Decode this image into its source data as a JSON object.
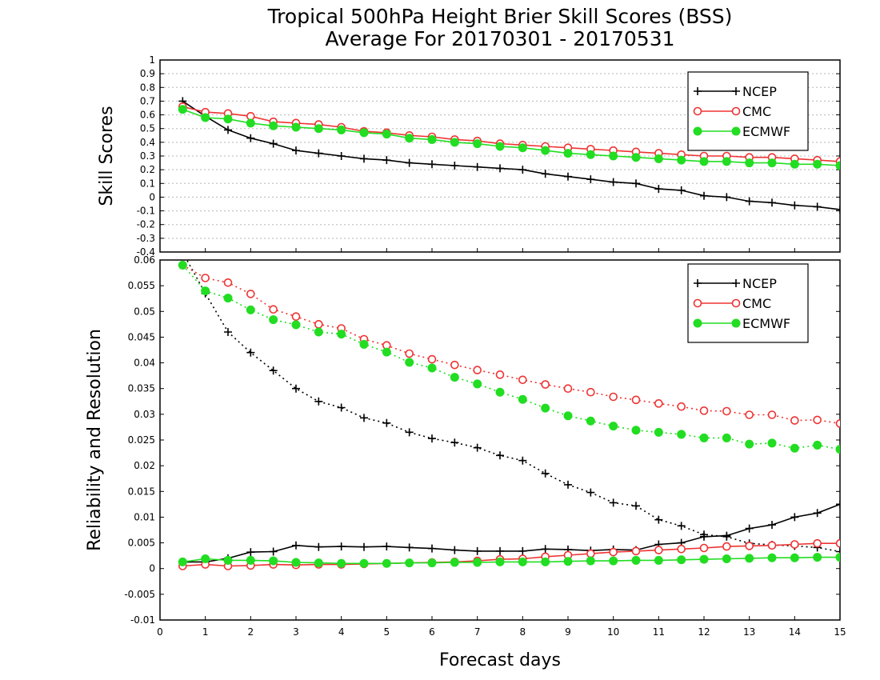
{
  "chart_data": [
    {
      "type": "line",
      "title": "Tropical 500hPa Height Brier Skill Scores (BSS)",
      "subtitle": "Average For 20170301 - 20170531",
      "ylabel": "Skill Scores",
      "xlabel": "",
      "xlim": [
        0,
        15
      ],
      "ylim": [
        -0.4,
        1
      ],
      "yticks": [
        "-0.4",
        "-0.3",
        "-0.2",
        "-0.1",
        "0",
        "0.1",
        "0.2",
        "0.3",
        "0.4",
        "0.5",
        "0.6",
        "0.7",
        "0.8",
        "0.9",
        "1"
      ],
      "grid": true,
      "legend_position": "top-right",
      "x": [
        0.5,
        1,
        1.5,
        2,
        2.5,
        3,
        3.5,
        4,
        4.5,
        5,
        5.5,
        6,
        6.5,
        7,
        7.5,
        8,
        8.5,
        9,
        9.5,
        10,
        10.5,
        11,
        11.5,
        12,
        12.5,
        13,
        13.5,
        14,
        14.5,
        15
      ],
      "series": [
        {
          "name": "NCEP",
          "color": "#000000",
          "marker": "plus",
          "style": "solid",
          "values": [
            0.7,
            0.59,
            0.49,
            0.43,
            0.39,
            0.34,
            0.32,
            0.3,
            0.28,
            0.27,
            0.25,
            0.24,
            0.23,
            0.22,
            0.21,
            0.2,
            0.17,
            0.15,
            0.13,
            0.11,
            0.1,
            0.06,
            0.05,
            0.01,
            0.0,
            -0.03,
            -0.04,
            -0.06,
            -0.07,
            -0.09
          ]
        },
        {
          "name": "CMC",
          "color": "#ee3333",
          "marker": "open-circle",
          "style": "solid",
          "values": [
            0.66,
            0.62,
            0.61,
            0.59,
            0.55,
            0.54,
            0.53,
            0.51,
            0.48,
            0.47,
            0.45,
            0.44,
            0.42,
            0.41,
            0.39,
            0.38,
            0.37,
            0.36,
            0.35,
            0.34,
            0.33,
            0.32,
            0.31,
            0.3,
            0.3,
            0.29,
            0.29,
            0.28,
            0.27,
            0.26
          ]
        },
        {
          "name": "ECMWF",
          "color": "#22dd22",
          "marker": "filled-circle",
          "style": "solid",
          "values": [
            0.64,
            0.58,
            0.57,
            0.54,
            0.52,
            0.51,
            0.5,
            0.49,
            0.47,
            0.46,
            0.43,
            0.42,
            0.4,
            0.39,
            0.37,
            0.36,
            0.34,
            0.32,
            0.31,
            0.3,
            0.29,
            0.28,
            0.27,
            0.26,
            0.26,
            0.25,
            0.25,
            0.24,
            0.24,
            0.23
          ]
        }
      ]
    },
    {
      "type": "line",
      "ylabel": "Reliability and Resolution",
      "xlabel": "Forecast days",
      "xlim": [
        0,
        15
      ],
      "ylim": [
        -0.01,
        0.06
      ],
      "xticks": [
        "0",
        "1",
        "2",
        "3",
        "4",
        "5",
        "6",
        "7",
        "8",
        "9",
        "10",
        "11",
        "12",
        "13",
        "14",
        "15"
      ],
      "yticks": [
        "-0.01",
        "-0.005",
        "0",
        "0.005",
        "0.01",
        "0.015",
        "0.02",
        "0.025",
        "0.03",
        "0.035",
        "0.04",
        "0.045",
        "0.05",
        "0.055",
        "0.06"
      ],
      "grid": false,
      "legend_position": "top-right",
      "legend": [
        {
          "name": "NCEP",
          "color": "#000000",
          "marker": "plus"
        },
        {
          "name": "CMC",
          "color": "#ee3333",
          "marker": "open-circle"
        },
        {
          "name": "ECMWF",
          "color": "#22dd22",
          "marker": "filled-circle"
        }
      ],
      "x": [
        0.5,
        1,
        1.5,
        2,
        2.5,
        3,
        3.5,
        4,
        4.5,
        5,
        5.5,
        6,
        6.5,
        7,
        7.5,
        8,
        8.5,
        9,
        9.5,
        10,
        10.5,
        11,
        11.5,
        12,
        12.5,
        13,
        13.5,
        14,
        14.5,
        15
      ],
      "series": [
        {
          "name": "NCEP",
          "group": "resolution",
          "color": "#000000",
          "marker": "plus",
          "style": "dotted",
          "values": [
            0.0615,
            0.0535,
            0.046,
            0.042,
            0.0385,
            0.035,
            0.0325,
            0.0313,
            0.0293,
            0.0283,
            0.0265,
            0.0253,
            0.0245,
            0.0235,
            0.022,
            0.021,
            0.0185,
            0.0163,
            0.0148,
            0.0128,
            0.0122,
            0.0095,
            0.0083,
            0.0066,
            0.0062,
            0.0049,
            0.0046,
            0.0044,
            0.0041,
            0.0033
          ]
        },
        {
          "name": "CMC",
          "group": "resolution",
          "color": "#ee3333",
          "marker": "open-circle",
          "style": "dotted",
          "values": [
            0.059,
            0.0565,
            0.0556,
            0.0534,
            0.0504,
            0.049,
            0.0475,
            0.0467,
            0.0446,
            0.0434,
            0.0418,
            0.0407,
            0.0396,
            0.0386,
            0.0377,
            0.0367,
            0.0358,
            0.035,
            0.0343,
            0.0334,
            0.0328,
            0.0321,
            0.0315,
            0.0307,
            0.0306,
            0.0299,
            0.0299,
            0.0288,
            0.0289,
            0.0282
          ]
        },
        {
          "name": "ECMWF",
          "group": "resolution",
          "color": "#22dd22",
          "marker": "filled-circle",
          "style": "dotted",
          "values": [
            0.059,
            0.054,
            0.0526,
            0.0503,
            0.0484,
            0.0474,
            0.046,
            0.0456,
            0.0436,
            0.0421,
            0.0401,
            0.039,
            0.0372,
            0.0359,
            0.0343,
            0.0329,
            0.0312,
            0.0297,
            0.0287,
            0.0277,
            0.0269,
            0.0265,
            0.0261,
            0.0254,
            0.0254,
            0.0242,
            0.0244,
            0.0234,
            0.024,
            0.0232
          ]
        },
        {
          "name": "NCEP",
          "group": "reliability",
          "color": "#000000",
          "marker": "plus",
          "style": "solid",
          "values": [
            0.0013,
            0.0013,
            0.002,
            0.0032,
            0.0033,
            0.0045,
            0.0042,
            0.0043,
            0.0042,
            0.0043,
            0.0041,
            0.0039,
            0.0036,
            0.0034,
            0.0034,
            0.0034,
            0.0038,
            0.0037,
            0.0035,
            0.0037,
            0.0036,
            0.0047,
            0.005,
            0.0062,
            0.0064,
            0.0078,
            0.0085,
            0.01,
            0.0108,
            0.0125
          ]
        },
        {
          "name": "CMC",
          "group": "reliability",
          "color": "#ee3333",
          "marker": "open-circle",
          "style": "solid",
          "values": [
            0.0005,
            0.0008,
            0.0005,
            0.0006,
            0.0008,
            0.0007,
            0.0008,
            0.0008,
            0.0009,
            0.001,
            0.0011,
            0.0012,
            0.0013,
            0.0015,
            0.0018,
            0.0019,
            0.0023,
            0.0026,
            0.0029,
            0.0032,
            0.0034,
            0.0036,
            0.0038,
            0.004,
            0.0043,
            0.0044,
            0.0045,
            0.0047,
            0.0049,
            0.0049
          ]
        },
        {
          "name": "ECMWF",
          "group": "reliability",
          "color": "#22dd22",
          "marker": "filled-circle",
          "style": "solid",
          "values": [
            0.0013,
            0.0019,
            0.0016,
            0.0016,
            0.0015,
            0.0012,
            0.0011,
            0.001,
            0.001,
            0.001,
            0.0011,
            0.0011,
            0.0012,
            0.0012,
            0.0013,
            0.0013,
            0.0013,
            0.0014,
            0.0015,
            0.0015,
            0.0016,
            0.0016,
            0.0017,
            0.0018,
            0.0019,
            0.002,
            0.0021,
            0.0021,
            0.0022,
            0.0022
          ]
        }
      ]
    }
  ]
}
